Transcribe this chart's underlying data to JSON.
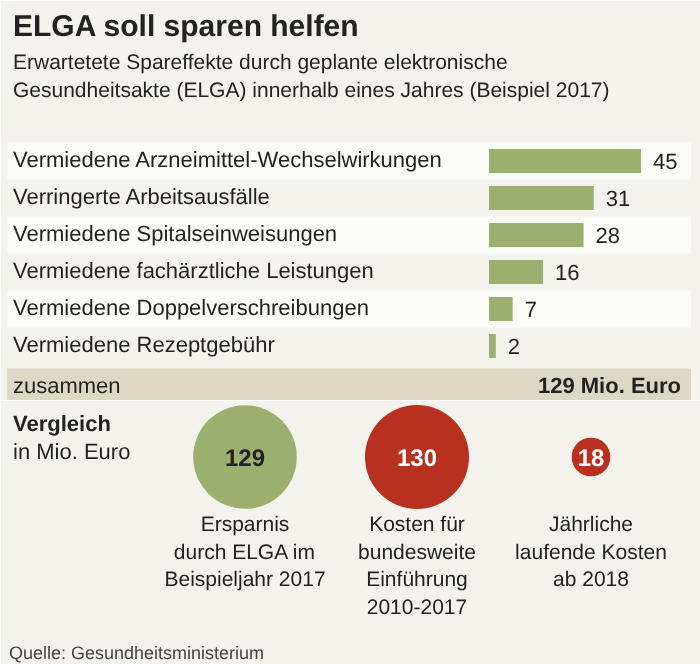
{
  "chart_data": [
    {
      "type": "bar",
      "orientation": "horizontal",
      "title": "ELGA soll sparen helfen",
      "subtitle": "Erwartetete Spareffekte durch geplante elektronische Gesundheitsakte (ELGA) innerhalb eines Jahres (Beispiel 2017)",
      "categories": [
        "Vermiedene Arzneimittel-Wechselwirkungen",
        "Verringerte Arbeitsausfälle",
        "Vermiedene Spitalseinweisungen",
        "Vermiedene fachärztliche Leistungen",
        "Vermiedene Doppelverschreibungen",
        "Vermiedene Rezeptgebühr"
      ],
      "values": [
        45,
        31,
        28,
        16,
        7,
        2
      ],
      "color": "#9bb06f",
      "data_labels": true,
      "annotations": [
        "zusammen",
        "129 Mio. Euro"
      ]
    },
    {
      "type": "other",
      "title": "Vergleich",
      "subtitle": "in Mio. Euro",
      "categories": [
        "Ersparnis\ndurch ELGA im\nBeispieljahr 2017",
        "Kosten für\nbundesweite\nEinführung\n2010-2017",
        "Jährliche\nlaufende Kosten\nab 2018"
      ],
      "series": [
        {
          "color": "#9bb06f",
          "values": [
            129,
            null,
            null
          ]
        },
        {
          "color": "#b8301e",
          "values": [
            null,
            130,
            18
          ]
        }
      ],
      "data_labels": true,
      "annotations": [
        "Quelle: Gesundheitsministerium"
      ]
    }
  ]
}
